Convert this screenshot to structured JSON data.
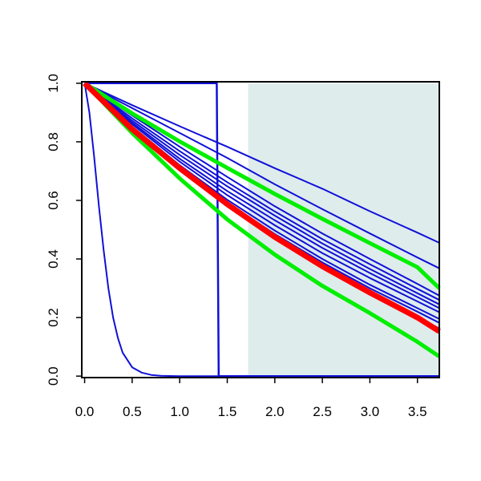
{
  "chart_data": {
    "type": "line",
    "title": "",
    "xlabel": "",
    "ylabel": "",
    "xlim": [
      -0.03,
      3.73
    ],
    "ylim": [
      -0.005,
      1.005
    ],
    "x_ticks": [
      {
        "value": 0.0,
        "label": "0.0"
      },
      {
        "value": 0.5,
        "label": "0.5"
      },
      {
        "value": 1.0,
        "label": "1.0"
      },
      {
        "value": 1.5,
        "label": "1.5"
      },
      {
        "value": 2.0,
        "label": "2.0"
      },
      {
        "value": 2.5,
        "label": "2.5"
      },
      {
        "value": 3.0,
        "label": "3.0"
      },
      {
        "value": 3.5,
        "label": "3.5"
      }
    ],
    "y_ticks": [
      {
        "value": 0.0,
        "label": "0.0"
      },
      {
        "value": 0.2,
        "label": "0.2"
      },
      {
        "value": 0.4,
        "label": "0.4"
      },
      {
        "value": 0.6,
        "label": "0.6"
      },
      {
        "value": 0.8,
        "label": "0.8"
      },
      {
        "value": 1.0,
        "label": "1.0"
      }
    ],
    "shaded_region": {
      "x": [
        1.72,
        3.73
      ],
      "y": [
        0.0,
        1.0
      ],
      "color": "#deecec"
    },
    "grid": false,
    "legend": "none",
    "colors": {
      "blue": "#1010d8",
      "red": "#ff0000",
      "green": "#00ee00",
      "shade": "#deecec"
    },
    "series": [
      {
        "color": "blue",
        "width": 2,
        "points": [
          [
            0,
            1
          ],
          [
            0.05,
            0.9
          ],
          [
            0.1,
            0.75
          ],
          [
            0.15,
            0.58
          ],
          [
            0.2,
            0.43
          ],
          [
            0.25,
            0.3
          ],
          [
            0.3,
            0.2
          ],
          [
            0.35,
            0.13
          ],
          [
            0.4,
            0.08
          ],
          [
            0.5,
            0.03
          ],
          [
            0.6,
            0.012
          ],
          [
            0.7,
            0.004
          ],
          [
            0.8,
            0.001
          ],
          [
            1.0,
            0
          ],
          [
            3.73,
            0
          ]
        ]
      },
      {
        "color": "blue",
        "width": 2.5,
        "points": [
          [
            0,
            1
          ],
          [
            1.39,
            1
          ],
          [
            1.4,
            0.5
          ],
          [
            1.41,
            0
          ],
          [
            3.73,
            0
          ]
        ]
      },
      {
        "color": "blue",
        "width": 2,
        "points": [
          [
            0,
            1
          ],
          [
            0.5,
            0.925
          ],
          [
            1.0,
            0.853
          ],
          [
            1.5,
            0.783
          ],
          [
            2.0,
            0.71
          ],
          [
            2.5,
            0.64
          ],
          [
            3.0,
            0.563
          ],
          [
            3.5,
            0.49
          ],
          [
            3.73,
            0.455
          ]
        ]
      },
      {
        "color": "blue",
        "width": 2,
        "points": [
          [
            0,
            1
          ],
          [
            0.5,
            0.915
          ],
          [
            1.0,
            0.83
          ],
          [
            1.5,
            0.745
          ],
          [
            2.0,
            0.655
          ],
          [
            2.5,
            0.57
          ],
          [
            3.0,
            0.487
          ],
          [
            3.5,
            0.405
          ],
          [
            3.73,
            0.368
          ]
        ]
      },
      {
        "color": "blue",
        "width": 2,
        "points": [
          [
            0,
            1
          ],
          [
            0.5,
            0.89
          ],
          [
            1.0,
            0.783
          ],
          [
            1.5,
            0.68
          ],
          [
            2.0,
            0.58
          ],
          [
            2.5,
            0.487
          ],
          [
            3.0,
            0.4
          ],
          [
            3.5,
            0.315
          ],
          [
            3.73,
            0.275
          ]
        ]
      },
      {
        "color": "blue",
        "width": 2,
        "points": [
          [
            0,
            1
          ],
          [
            0.5,
            0.88
          ],
          [
            1.0,
            0.768
          ],
          [
            1.5,
            0.662
          ],
          [
            2.0,
            0.562
          ],
          [
            2.5,
            0.468
          ],
          [
            3.0,
            0.382
          ],
          [
            3.5,
            0.298
          ],
          [
            3.73,
            0.26
          ]
        ]
      },
      {
        "color": "blue",
        "width": 2,
        "points": [
          [
            0,
            1
          ],
          [
            0.5,
            0.872
          ],
          [
            1.0,
            0.755
          ],
          [
            1.5,
            0.648
          ],
          [
            2.0,
            0.548
          ],
          [
            2.5,
            0.453
          ],
          [
            3.0,
            0.366
          ],
          [
            3.5,
            0.283
          ],
          [
            3.73,
            0.245
          ]
        ]
      },
      {
        "color": "blue",
        "width": 2,
        "points": [
          [
            0,
            1
          ],
          [
            0.5,
            0.865
          ],
          [
            1.0,
            0.742
          ],
          [
            1.5,
            0.632
          ],
          [
            2.0,
            0.532
          ],
          [
            2.5,
            0.438
          ],
          [
            3.0,
            0.352
          ],
          [
            3.5,
            0.27
          ],
          [
            3.73,
            0.232
          ]
        ]
      },
      {
        "color": "blue",
        "width": 2,
        "points": [
          [
            0,
            1
          ],
          [
            0.5,
            0.86
          ],
          [
            1.0,
            0.732
          ],
          [
            1.5,
            0.618
          ],
          [
            2.0,
            0.515
          ],
          [
            2.5,
            0.42
          ],
          [
            3.0,
            0.335
          ],
          [
            3.5,
            0.255
          ],
          [
            3.73,
            0.218
          ]
        ]
      },
      {
        "color": "blue",
        "width": 2,
        "points": [
          [
            0,
            1
          ],
          [
            0.5,
            0.852
          ],
          [
            1.0,
            0.72
          ],
          [
            1.5,
            0.602
          ],
          [
            2.0,
            0.497
          ],
          [
            2.5,
            0.4
          ],
          [
            3.0,
            0.312
          ],
          [
            3.5,
            0.232
          ],
          [
            3.73,
            0.195
          ]
        ]
      },
      {
        "color": "blue",
        "width": 2,
        "points": [
          [
            0,
            1
          ],
          [
            0.5,
            0.848
          ],
          [
            1.0,
            0.712
          ],
          [
            1.5,
            0.592
          ],
          [
            2.0,
            0.485
          ],
          [
            2.5,
            0.388
          ],
          [
            3.0,
            0.3
          ],
          [
            3.5,
            0.22
          ],
          [
            3.73,
            0.182
          ]
        ]
      },
      {
        "color": "blue",
        "width": 2,
        "points": [
          [
            0,
            1
          ],
          [
            0.5,
            0.842
          ],
          [
            1.0,
            0.705
          ],
          [
            1.5,
            0.58
          ],
          [
            2.0,
            0.47
          ],
          [
            2.5,
            0.372
          ],
          [
            3.0,
            0.283
          ],
          [
            3.5,
            0.2
          ],
          [
            3.73,
            0.163
          ]
        ]
      },
      {
        "color": "green",
        "width": 5,
        "points": [
          [
            0,
            1
          ],
          [
            0.5,
            0.897
          ],
          [
            1.0,
            0.801
          ],
          [
            1.5,
            0.711
          ],
          [
            2.0,
            0.622
          ],
          [
            2.5,
            0.537
          ],
          [
            3.0,
            0.454
          ],
          [
            3.5,
            0.372
          ],
          [
            3.73,
            0.3
          ]
        ]
      },
      {
        "color": "green",
        "width": 5,
        "points": [
          [
            0,
            1
          ],
          [
            0.5,
            0.83
          ],
          [
            1.0,
            0.675
          ],
          [
            1.5,
            0.535
          ],
          [
            2.0,
            0.415
          ],
          [
            2.5,
            0.308
          ],
          [
            3.0,
            0.215
          ],
          [
            3.5,
            0.117
          ],
          [
            3.73,
            0.067
          ]
        ]
      },
      {
        "color": "red",
        "width": 7,
        "points": [
          [
            0,
            1
          ],
          [
            0.5,
            0.843
          ],
          [
            1.0,
            0.71
          ],
          [
            1.5,
            0.587
          ],
          [
            2.0,
            0.475
          ],
          [
            2.5,
            0.375
          ],
          [
            3.0,
            0.285
          ],
          [
            3.5,
            0.2
          ],
          [
            3.73,
            0.153
          ]
        ]
      }
    ]
  }
}
